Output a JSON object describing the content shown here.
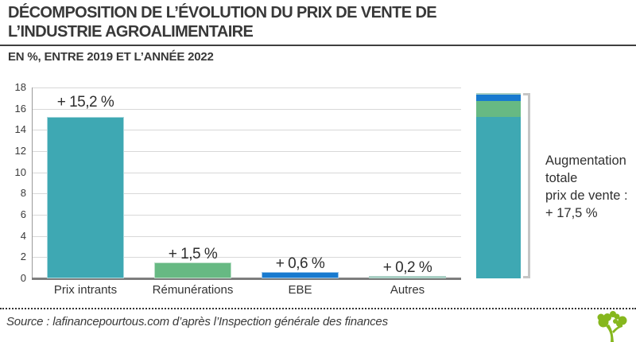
{
  "header": {
    "title": "DÉCOMPOSITION DE L’ÉVOLUTION DU PRIX DE VENTE DE\nL’INDUSTRIE AGROALIMENTAIRE",
    "subtitle": "EN %, ENTRE 2019 ET L’ANNÉE 2022"
  },
  "chart_data": {
    "type": "bar",
    "categories": [
      "Prix intrants",
      "Rémunérations",
      "EBE",
      "Autres"
    ],
    "values": [
      15.2,
      1.5,
      0.6,
      0.2
    ],
    "value_labels": [
      "+ 15,2 %",
      "+ 1,5 %",
      "+ 0,6 %",
      "+ 0,2 %"
    ],
    "bar_colors": [
      "#3EA8B3",
      "#67B983",
      "#187ACF",
      "#A9CFC4"
    ],
    "xlabel": "",
    "ylabel": "",
    "ylim": [
      0,
      18
    ],
    "ytick_step": 2,
    "yticks": [
      "0",
      "2",
      "4",
      "6",
      "8",
      "10",
      "12",
      "14",
      "16",
      "18"
    ],
    "grid": true,
    "legend": "none",
    "stacked_total": {
      "value": 17.5,
      "label": "Augmentation\ntotale\nprix de vente :\n+ 17,5 %",
      "segments_bottom_to_top": [
        "Prix intrants",
        "Rémunérations",
        "EBE",
        "Autres"
      ]
    }
  },
  "footer": {
    "source": "Source : lafinancepourtous.com d’après l’Inspection générale des finances",
    "logo_icon": "lafinancepourtous-tree-icon"
  },
  "colors": {
    "grid": "#D8D8D8",
    "axis_x": "#7D7D7D",
    "axis_y": "#9A9A9A",
    "bracket": "#C6C6C6",
    "text_dark": "#383838",
    "logo_green": "#86B71E"
  }
}
